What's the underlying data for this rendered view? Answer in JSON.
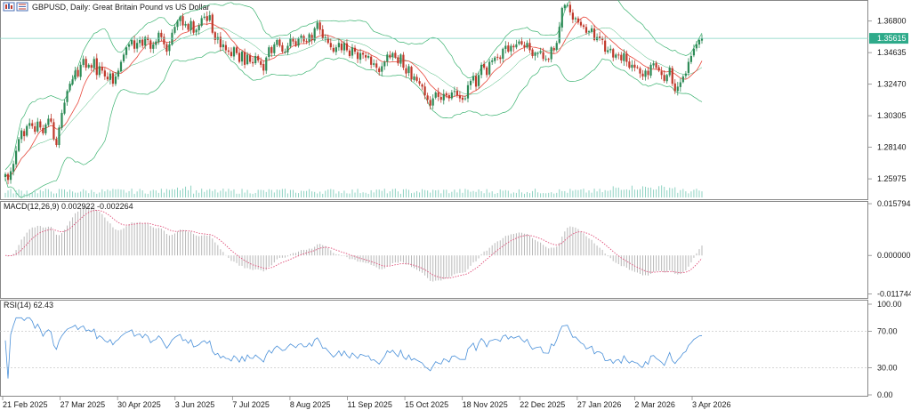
{
  "chart_data": {
    "type": "candlestick",
    "title": "GBPUSD, Daily:  Great Britain Pound vs US Dollar",
    "symbol": "GBPUSD",
    "timeframe": "Daily",
    "current_price": "1.35615",
    "main": {
      "y_ticks": [
        "1.36800",
        "1.34635",
        "1.32470",
        "1.30305",
        "1.28140",
        "1.25975"
      ],
      "ylim": [
        1.247,
        1.38
      ],
      "closes": [
        1.263,
        1.259,
        1.265,
        1.27,
        1.279,
        1.287,
        1.293,
        1.289,
        1.296,
        1.298,
        1.296,
        1.292,
        1.299,
        1.295,
        1.291,
        1.297,
        1.301,
        1.299,
        1.287,
        1.283,
        1.295,
        1.305,
        1.312,
        1.32,
        1.325,
        1.328,
        1.334,
        1.33,
        1.338,
        1.342,
        1.336,
        1.338,
        1.336,
        1.342,
        1.331,
        1.337,
        1.334,
        1.33,
        1.328,
        1.332,
        1.325,
        1.33,
        1.334,
        1.34,
        1.345,
        1.35,
        1.352,
        1.355,
        1.349,
        1.353,
        1.355,
        1.351,
        1.357,
        1.355,
        1.349,
        1.352,
        1.354,
        1.36,
        1.357,
        1.352,
        1.347,
        1.352,
        1.36,
        1.364,
        1.368,
        1.371,
        1.365,
        1.366,
        1.362,
        1.368,
        1.36,
        1.362,
        1.365,
        1.37,
        1.371,
        1.368,
        1.372,
        1.36,
        1.355,
        1.357,
        1.35,
        1.352,
        1.348,
        1.347,
        1.344,
        1.35,
        1.346,
        1.34,
        1.347,
        1.338,
        1.345,
        1.34,
        1.339,
        1.344,
        1.341,
        1.338,
        1.334,
        1.343,
        1.35,
        1.346,
        1.352,
        1.355,
        1.351,
        1.347,
        1.347,
        1.351,
        1.356,
        1.354,
        1.351,
        1.356,
        1.358,
        1.354,
        1.354,
        1.359,
        1.355,
        1.363,
        1.367,
        1.362,
        1.356,
        1.357,
        1.353,
        1.35,
        1.347,
        1.35,
        1.353,
        1.348,
        1.353,
        1.348,
        1.344,
        1.35,
        1.347,
        1.342,
        1.346,
        1.345,
        1.343,
        1.344,
        1.338,
        1.339,
        1.336,
        1.333,
        1.337,
        1.34,
        1.345,
        1.343,
        1.346,
        1.343,
        1.339,
        1.345,
        1.336,
        1.332,
        1.337,
        1.328,
        1.33,
        1.327,
        1.325,
        1.323,
        1.317,
        1.314,
        1.31,
        1.315,
        1.319,
        1.316,
        1.314,
        1.318,
        1.317,
        1.315,
        1.319,
        1.32,
        1.317,
        1.315,
        1.314,
        1.315,
        1.324,
        1.327,
        1.33,
        1.323,
        1.331,
        1.338,
        1.336,
        1.331,
        1.34,
        1.341,
        1.343,
        1.343,
        1.342,
        1.349,
        1.351,
        1.347,
        1.351,
        1.35,
        1.352,
        1.354,
        1.352,
        1.35,
        1.353,
        1.348,
        1.344,
        1.346,
        1.346,
        1.347,
        1.342,
        1.342,
        1.342,
        1.35,
        1.348,
        1.353,
        1.364,
        1.377,
        1.379,
        1.379,
        1.374,
        1.369,
        1.37,
        1.367,
        1.365,
        1.364,
        1.36,
        1.361,
        1.363,
        1.355,
        1.357,
        1.356,
        1.355,
        1.347,
        1.348,
        1.349,
        1.343,
        1.345,
        1.345,
        1.341,
        1.346,
        1.34,
        1.336,
        1.338,
        1.336,
        1.336,
        1.332,
        1.33,
        1.334,
        1.331,
        1.338,
        1.339,
        1.336,
        1.334,
        1.331,
        1.327,
        1.331,
        1.336,
        1.325,
        1.32,
        1.323,
        1.326,
        1.33,
        1.332,
        1.34,
        1.344,
        1.349,
        1.352,
        1.355,
        1.356
      ]
    },
    "x_ticks": [
      "21 Feb 2025",
      "27 Mar 2025",
      "30 Apr 2025",
      "3 Jun 2025",
      "7 Jul 2025",
      "8 Aug 2025",
      "11 Sep 2025",
      "15 Oct 2025",
      "18 Nov 2025",
      "22 Dec 2025",
      "27 Jan 2026",
      "2 Mar 2026",
      "3 Apr 2026"
    ],
    "macd": {
      "label": "MACD(12,26,9) 0.002922 -0.002264",
      "y_ticks": [
        "0.015794",
        "0.000000",
        "-0.011744"
      ],
      "ylim": [
        -0.0127,
        0.0158
      ]
    },
    "rsi": {
      "label": "RSI(14) 62.43",
      "y_ticks": [
        "100.00",
        "70.00",
        "30.00",
        "0.00"
      ],
      "levels": [
        70,
        30
      ],
      "ylim": [
        0,
        100
      ]
    },
    "colors": {
      "bull": "#2e8b57",
      "bear": "#c0392b",
      "bands": "#3cb371",
      "ma": "#e8483c",
      "price_line": "#7fd3c1",
      "price_label_bg": "#2eaa8a",
      "rsi_line": "#4a90d9",
      "volume": "#8fd3c3",
      "macd_hist": "#b8b8b8",
      "macd_signal": "#e0507a",
      "grid_border": "#888888"
    }
  }
}
